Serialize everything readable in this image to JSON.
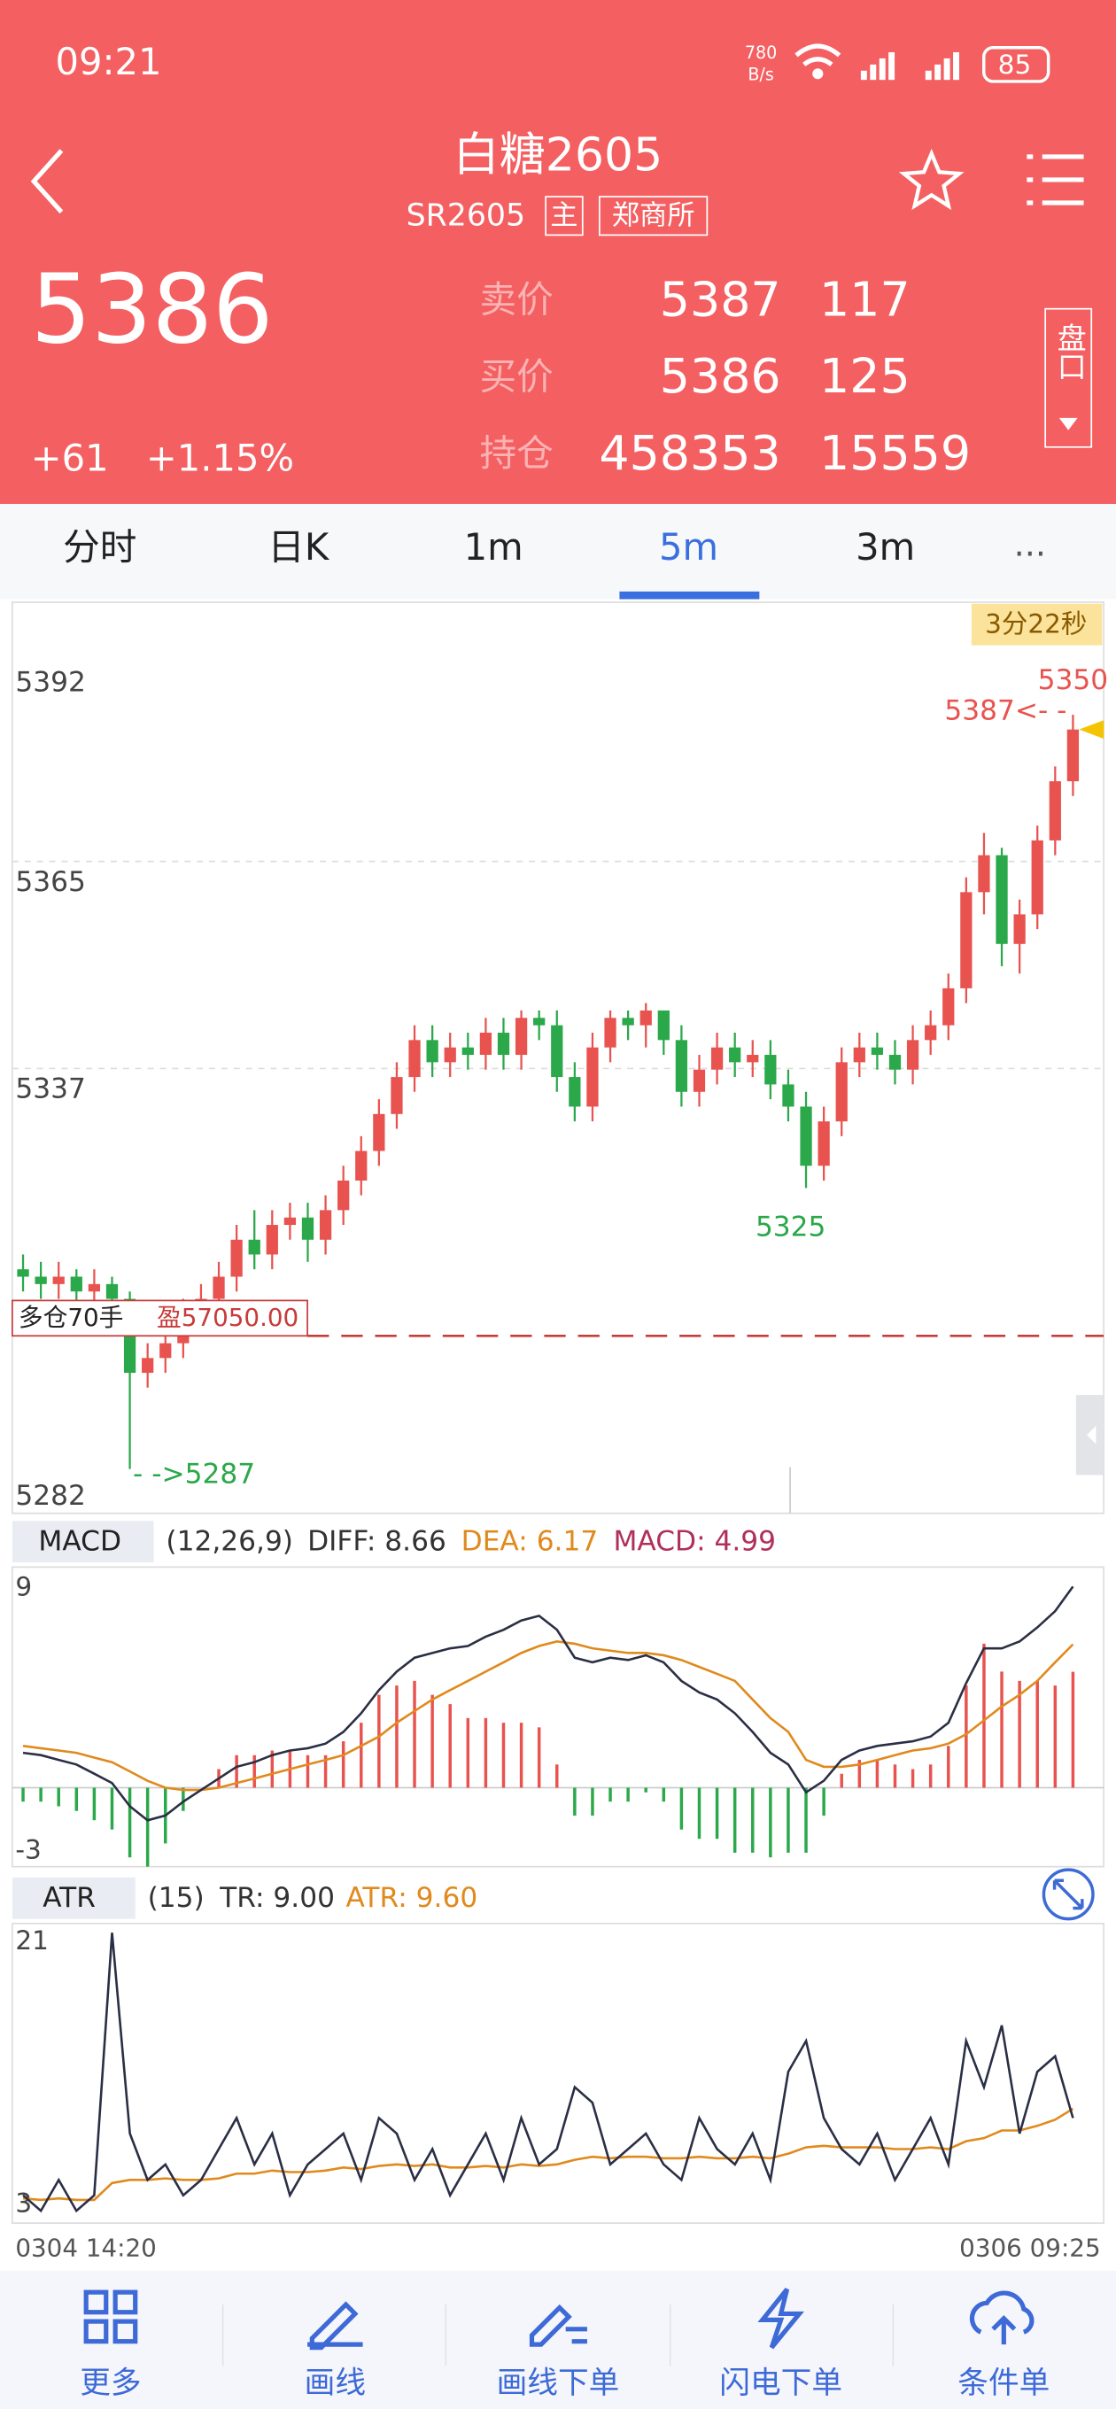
{
  "status_bar": {
    "time": "09:21",
    "net_speed": "780",
    "net_unit": "B/s",
    "battery": "85"
  },
  "header": {
    "title": "白糖2605",
    "code": "SR2605",
    "tags": [
      "主",
      "郑商所"
    ]
  },
  "quote": {
    "price": "5386",
    "change": "+61",
    "change_pct": "+1.15%",
    "rows": [
      {
        "label": "卖价",
        "price": "5387",
        "volume": "117"
      },
      {
        "label": "买价",
        "price": "5386",
        "volume": "125"
      },
      {
        "label": "持仓",
        "price": "458353",
        "volume": "15559"
      }
    ],
    "side_tab": "盘口"
  },
  "tabs": {
    "items": [
      "分时",
      "日K",
      "1m",
      "5m",
      "3m"
    ],
    "active": 3
  },
  "kline": {
    "countdown": "3分22秒",
    "ylim": [
      5281,
      5404
    ],
    "yticks": [
      5392,
      5365,
      5337,
      5282
    ],
    "up_color": "#e8534f",
    "down_color": "#2aa84a",
    "candles": [
      [
        5314,
        5316,
        5311,
        5313
      ],
      [
        5313,
        5315,
        5310,
        5312
      ],
      [
        5312,
        5315,
        5310,
        5313
      ],
      [
        5313,
        5314,
        5309,
        5311
      ],
      [
        5311,
        5314,
        5309,
        5312
      ],
      [
        5312,
        5313,
        5308,
        5310
      ],
      [
        5310,
        5311,
        5287,
        5300
      ],
      [
        5300,
        5304,
        5298,
        5302
      ],
      [
        5302,
        5306,
        5300,
        5304
      ],
      [
        5304,
        5310,
        5302,
        5308
      ],
      [
        5308,
        5312,
        5306,
        5310
      ],
      [
        5310,
        5315,
        5308,
        5313
      ],
      [
        5313,
        5320,
        5311,
        5318
      ],
      [
        5318,
        5322,
        5314,
        5316
      ],
      [
        5316,
        5322,
        5314,
        5320
      ],
      [
        5320,
        5323,
        5318,
        5321
      ],
      [
        5321,
        5323,
        5315,
        5318
      ],
      [
        5318,
        5324,
        5316,
        5322
      ],
      [
        5322,
        5328,
        5320,
        5326
      ],
      [
        5326,
        5332,
        5324,
        5330
      ],
      [
        5330,
        5337,
        5328,
        5335
      ],
      [
        5335,
        5342,
        5333,
        5340
      ],
      [
        5340,
        5347,
        5338,
        5345
      ],
      [
        5345,
        5347,
        5340,
        5342
      ],
      [
        5342,
        5346,
        5340,
        5344
      ],
      [
        5344,
        5346,
        5341,
        5343
      ],
      [
        5343,
        5348,
        5341,
        5346
      ],
      [
        5346,
        5348,
        5341,
        5343
      ],
      [
        5343,
        5349,
        5341,
        5348
      ],
      [
        5348,
        5349,
        5345,
        5347
      ],
      [
        5347,
        5349,
        5338,
        5340
      ],
      [
        5340,
        5342,
        5334,
        5336
      ],
      [
        5336,
        5346,
        5334,
        5344
      ],
      [
        5344,
        5349,
        5342,
        5348
      ],
      [
        5348,
        5349,
        5345,
        5347
      ],
      [
        5347,
        5350,
        5344,
        5349
      ],
      [
        5349,
        5349,
        5343,
        5345
      ],
      [
        5345,
        5347,
        5336,
        5338
      ],
      [
        5338,
        5343,
        5336,
        5341
      ],
      [
        5341,
        5346,
        5339,
        5344
      ],
      [
        5344,
        5346,
        5340,
        5342
      ],
      [
        5342,
        5345,
        5340,
        5343
      ],
      [
        5343,
        5345,
        5337,
        5339
      ],
      [
        5339,
        5341,
        5334,
        5336
      ],
      [
        5336,
        5338,
        5325,
        5328
      ],
      [
        5328,
        5336,
        5326,
        5334
      ],
      [
        5334,
        5344,
        5332,
        5342
      ],
      [
        5342,
        5346,
        5340,
        5344
      ],
      [
        5344,
        5346,
        5341,
        5343
      ],
      [
        5343,
        5345,
        5339,
        5341
      ],
      [
        5341,
        5347,
        5339,
        5345
      ],
      [
        5345,
        5349,
        5343,
        5347
      ],
      [
        5347,
        5354,
        5345,
        5352
      ],
      [
        5352,
        5367,
        5350,
        5365
      ],
      [
        5365,
        5373,
        5362,
        5370
      ],
      [
        5370,
        5371,
        5355,
        5358
      ],
      [
        5358,
        5364,
        5354,
        5362
      ],
      [
        5362,
        5374,
        5360,
        5372
      ],
      [
        5372,
        5382,
        5370,
        5380
      ],
      [
        5380,
        5389,
        5378,
        5387
      ]
    ],
    "high_label": "5350",
    "low_label": "5325",
    "last_label": "5387<- -",
    "open_low_label": "- ->5287",
    "position": {
      "label": "多仓70手",
      "profit": "盈57050.00",
      "price": 5305,
      "color": "#c83b3b"
    }
  },
  "macd": {
    "name": "MACD",
    "params": "(12,26,9)",
    "diff_label": "DIFF: 8.66",
    "dea_label": "DEA: 6.17",
    "macd_label": "MACD: 4.99",
    "ylim": [
      -3.4,
      9.5
    ],
    "yticks": [
      9,
      -3
    ],
    "diff_color": "#2b2f45",
    "dea_color": "#e08a1e",
    "diff": [
      1.5,
      1.4,
      1.2,
      1.0,
      0.6,
      0.2,
      -0.8,
      -1.4,
      -1.2,
      -0.6,
      -0.1,
      0.4,
      0.9,
      1.1,
      1.4,
      1.6,
      1.7,
      1.9,
      2.4,
      3.2,
      4.2,
      5.0,
      5.6,
      5.8,
      6.0,
      6.1,
      6.5,
      6.8,
      7.2,
      7.4,
      6.8,
      5.6,
      5.4,
      5.6,
      5.5,
      5.7,
      5.4,
      4.6,
      4.1,
      3.8,
      3.2,
      2.4,
      1.5,
      1.0,
      -0.2,
      0.3,
      1.2,
      1.6,
      1.8,
      1.9,
      2.0,
      2.2,
      2.8,
      4.5,
      6.0,
      6.0,
      6.3,
      6.9,
      7.6,
      8.66
    ],
    "dea": [
      1.8,
      1.7,
      1.6,
      1.5,
      1.3,
      1.1,
      0.7,
      0.3,
      0.0,
      -0.1,
      -0.1,
      0.0,
      0.2,
      0.4,
      0.6,
      0.8,
      1.0,
      1.2,
      1.4,
      1.8,
      2.2,
      2.8,
      3.3,
      3.8,
      4.2,
      4.6,
      5.0,
      5.4,
      5.8,
      6.1,
      6.3,
      6.2,
      6.0,
      5.9,
      5.8,
      5.8,
      5.7,
      5.5,
      5.2,
      4.9,
      4.6,
      3.8,
      3.0,
      2.4,
      1.2,
      0.9,
      0.9,
      1.0,
      1.2,
      1.4,
      1.6,
      1.7,
      1.9,
      2.3,
      2.9,
      3.5,
      4.0,
      4.6,
      5.4,
      6.17
    ],
    "hist": [
      -0.6,
      -0.6,
      -0.8,
      -1.0,
      -1.4,
      -1.8,
      -3.0,
      -3.4,
      -2.4,
      -1.0,
      0,
      0.8,
      1.4,
      1.4,
      1.6,
      1.6,
      1.4,
      1.4,
      2.0,
      2.8,
      4.0,
      4.4,
      4.6,
      4.0,
      3.6,
      3.0,
      3.0,
      2.8,
      2.8,
      2.6,
      1.0,
      -1.2,
      -1.2,
      -0.6,
      -0.6,
      -0.2,
      -0.6,
      -1.8,
      -2.2,
      -2.2,
      -2.8,
      -2.8,
      -3.0,
      -2.8,
      -2.8,
      -1.2,
      0.6,
      1.2,
      1.2,
      1.0,
      0.8,
      1.0,
      1.8,
      4.4,
      6.2,
      5.0,
      4.6,
      4.6,
      4.4,
      4.99
    ]
  },
  "atr": {
    "name": "ATR",
    "params": "(15)",
    "tr_label": "TR: 9.00",
    "atr_label": "ATR: 9.60",
    "ylim": [
      2.2,
      21.6
    ],
    "yticks": [
      21,
      3
    ],
    "tr_color": "#2b2f45",
    "atr_color": "#e08a1e",
    "tr": [
      4,
      3,
      5,
      3,
      4,
      21,
      8,
      5,
      6,
      4,
      5,
      7,
      9,
      6,
      8,
      4,
      6,
      7,
      8,
      5,
      9,
      8,
      5,
      7,
      4,
      6,
      8,
      5,
      9,
      6,
      7,
      11,
      10,
      6,
      7,
      8,
      6,
      5,
      9,
      7,
      6,
      8,
      5,
      12,
      14,
      9,
      7,
      6,
      8,
      5,
      7,
      9,
      6,
      14,
      11,
      15,
      8,
      12,
      13,
      9
    ],
    "atr": [
      3.8,
      3.7,
      3.8,
      3.7,
      3.7,
      4.8,
      5.0,
      5.0,
      5.1,
      5.0,
      5.0,
      5.1,
      5.4,
      5.4,
      5.6,
      5.5,
      5.5,
      5.6,
      5.8,
      5.7,
      5.9,
      6.0,
      5.9,
      6.0,
      5.8,
      5.8,
      5.9,
      5.8,
      6.0,
      5.9,
      6.0,
      6.3,
      6.5,
      6.4,
      6.5,
      6.5,
      6.4,
      6.4,
      6.5,
      6.4,
      6.4,
      6.5,
      6.4,
      6.7,
      7.1,
      7.2,
      7.1,
      7.1,
      7.1,
      7.0,
      7.0,
      7.1,
      7.0,
      7.5,
      7.7,
      8.2,
      8.2,
      8.5,
      8.9,
      9.6
    ]
  },
  "time_axis": {
    "start": "0304 14:20",
    "end": "0306 09:25"
  },
  "bottom_nav": [
    "更多",
    "画线",
    "画线下单",
    "闪电下单",
    "条件单"
  ]
}
